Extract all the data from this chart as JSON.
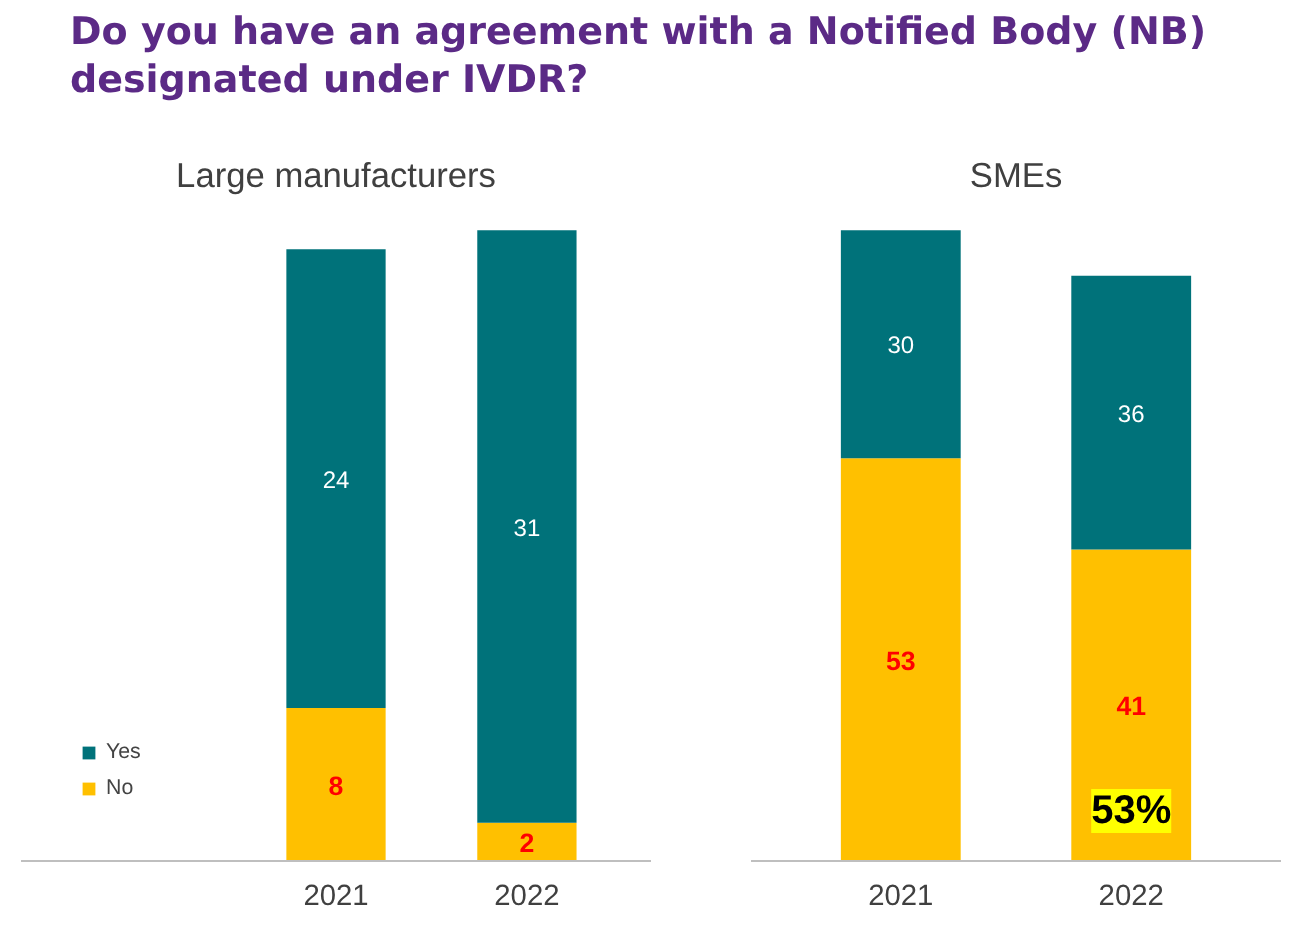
{
  "chart_data": [
    {
      "type": "bar",
      "stacked": true,
      "title": "Do you have an agreement with a Notified Body (NB) designated under IVDR?",
      "subtitle": "Large manufacturers",
      "categories": [
        "2021",
        "2022"
      ],
      "data_labels": true,
      "legend": "left",
      "series": [
        {
          "name": "No",
          "color": "#ffc000",
          "values": [
            8,
            2
          ]
        },
        {
          "name": "Yes",
          "color": "#00727a",
          "values": [
            24,
            31
          ]
        }
      ]
    },
    {
      "type": "bar",
      "stacked": true,
      "subtitle": "SMEs",
      "categories": [
        "2021",
        "2022"
      ],
      "data_labels": true,
      "annotations": [
        "53%"
      ],
      "series": [
        {
          "color": "#ffc000",
          "values": [
            53,
            41
          ]
        },
        {
          "color": "#00727a",
          "values": [
            30,
            36
          ]
        }
      ]
    }
  ]
}
